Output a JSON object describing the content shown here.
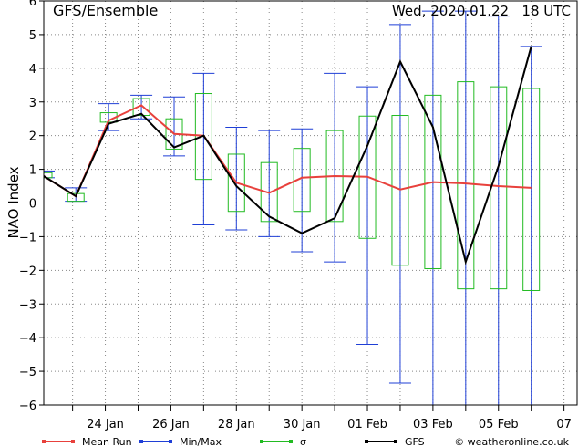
{
  "header": {
    "title": "GFS/Ensemble",
    "run": "Wed, 2020.01.22   18 UTC"
  },
  "footer": {
    "credit": "© weatheronline.co.uk"
  },
  "colors": {
    "mean": "#e8413c",
    "minmax": "#1f3fd6",
    "sigma": "#22bb22",
    "gfs": "#000000",
    "grid": "#888888"
  },
  "chart_data": {
    "type": "line",
    "title": "GFS/Ensemble",
    "ylabel": "NAO Index",
    "xlabel": "",
    "ylim": [
      -6,
      6
    ],
    "yticks": [
      -6,
      -5,
      -4,
      -3,
      -2,
      -1,
      0,
      1,
      2,
      3,
      4,
      5,
      6
    ],
    "x_tick_labels": [
      "24 Jan",
      "26 Jan",
      "28 Jan",
      "30 Jan",
      "01 Feb",
      "03 Feb",
      "05 Feb",
      "07"
    ],
    "x_tick_index": [
      1,
      3,
      5,
      7,
      9,
      11,
      13,
      15
    ],
    "x_range_index": [
      -0.88,
      15.4
    ],
    "grid": true,
    "legend": [
      {
        "key": "mean",
        "label": "Mean Run"
      },
      {
        "key": "minmax",
        "label": "Min/Max"
      },
      {
        "key": "sigma",
        "label": "σ"
      },
      {
        "key": "gfs",
        "label": "GFS"
      }
    ],
    "series": [
      {
        "name": "Mean Run",
        "values": [
          0.8,
          0.2,
          2.45,
          2.9,
          2.05,
          2.0,
          0.6,
          0.3,
          0.75,
          0.8,
          0.78,
          0.4,
          0.62,
          0.58,
          0.5,
          0.45
        ]
      },
      {
        "name": "GFS",
        "values": [
          0.8,
          0.2,
          2.35,
          2.65,
          1.65,
          2.0,
          0.5,
          -0.4,
          -0.9,
          -0.45,
          1.7,
          4.2,
          2.25,
          -1.75,
          1.1,
          4.65
        ]
      }
    ],
    "x_index": [
      -0.88,
      0.1,
      1.1,
      2.1,
      3.1,
      4.0,
      5.0,
      6.0,
      7.0,
      8.0,
      9.0,
      10.0,
      11.0,
      12.0,
      13.0,
      14.0
    ],
    "minmax": [
      {
        "x": -0.88,
        "min": 0.75,
        "max": 0.95
      },
      {
        "x": 0.1,
        "min": 0.05,
        "max": 0.45
      },
      {
        "x": 1.1,
        "min": 2.15,
        "max": 2.95
      },
      {
        "x": 2.1,
        "min": 2.5,
        "max": 3.2
      },
      {
        "x": 3.1,
        "min": 1.4,
        "max": 3.15
      },
      {
        "x": 4.0,
        "min": -0.65,
        "max": 3.85
      },
      {
        "x": 5.0,
        "min": -0.8,
        "max": 2.25
      },
      {
        "x": 6.0,
        "min": -1.0,
        "max": 2.15
      },
      {
        "x": 7.0,
        "min": -1.45,
        "max": 2.2
      },
      {
        "x": 8.0,
        "min": -1.75,
        "max": 3.85
      },
      {
        "x": 9.0,
        "min": -4.2,
        "max": 3.45
      },
      {
        "x": 10.0,
        "min": -5.35,
        "max": 5.3
      },
      {
        "x": 11.0,
        "min": -6.0,
        "max": 5.7
      },
      {
        "x": 12.0,
        "min": -6.0,
        "max": 5.7
      },
      {
        "x": 13.0,
        "min": -6.0,
        "max": 5.55
      },
      {
        "x": 14.0,
        "min": -6.0,
        "max": 4.65
      }
    ],
    "sigma_boxes": [
      {
        "x": -0.88,
        "low": 0.75,
        "high": 0.9
      },
      {
        "x": 0.1,
        "low": 0.05,
        "high": 0.28
      },
      {
        "x": 1.1,
        "low": 2.4,
        "high": 2.68
      },
      {
        "x": 2.1,
        "low": 2.6,
        "high": 3.1
      },
      {
        "x": 3.1,
        "low": 1.6,
        "high": 2.5
      },
      {
        "x": 4.0,
        "low": 0.7,
        "high": 3.25
      },
      {
        "x": 5.0,
        "low": -0.25,
        "high": 1.45
      },
      {
        "x": 6.0,
        "low": -0.55,
        "high": 1.2
      },
      {
        "x": 7.0,
        "low": -0.25,
        "high": 1.62
      },
      {
        "x": 8.0,
        "low": -0.55,
        "high": 2.15
      },
      {
        "x": 9.0,
        "low": -1.05,
        "high": 2.58
      },
      {
        "x": 10.0,
        "low": -1.85,
        "high": 2.6
      },
      {
        "x": 11.0,
        "low": -1.95,
        "high": 3.2
      },
      {
        "x": 12.0,
        "low": -2.55,
        "high": 3.6
      },
      {
        "x": 13.0,
        "low": -2.55,
        "high": 3.45
      },
      {
        "x": 14.0,
        "low": -2.6,
        "high": 3.4
      }
    ]
  }
}
